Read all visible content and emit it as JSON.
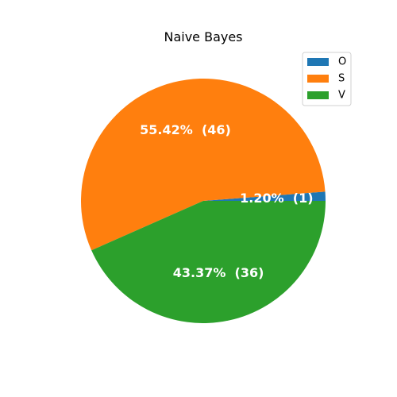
{
  "chart_data": {
    "type": "pie",
    "title": "Naive Bayes",
    "categories": [
      "O",
      "S",
      "V"
    ],
    "values": [
      1,
      46,
      36
    ],
    "percent_labels": [
      "1.20%  (1)",
      "55.42%  (46)",
      "43.37%  (36)"
    ],
    "colors": [
      "#1f77b4",
      "#ff7f0e",
      "#2ca02c"
    ],
    "legend": {
      "placement": "top-right",
      "entries": [
        "O",
        "S",
        "V"
      ]
    },
    "start_angle_deg": 0,
    "direction": "counterclockwise"
  }
}
